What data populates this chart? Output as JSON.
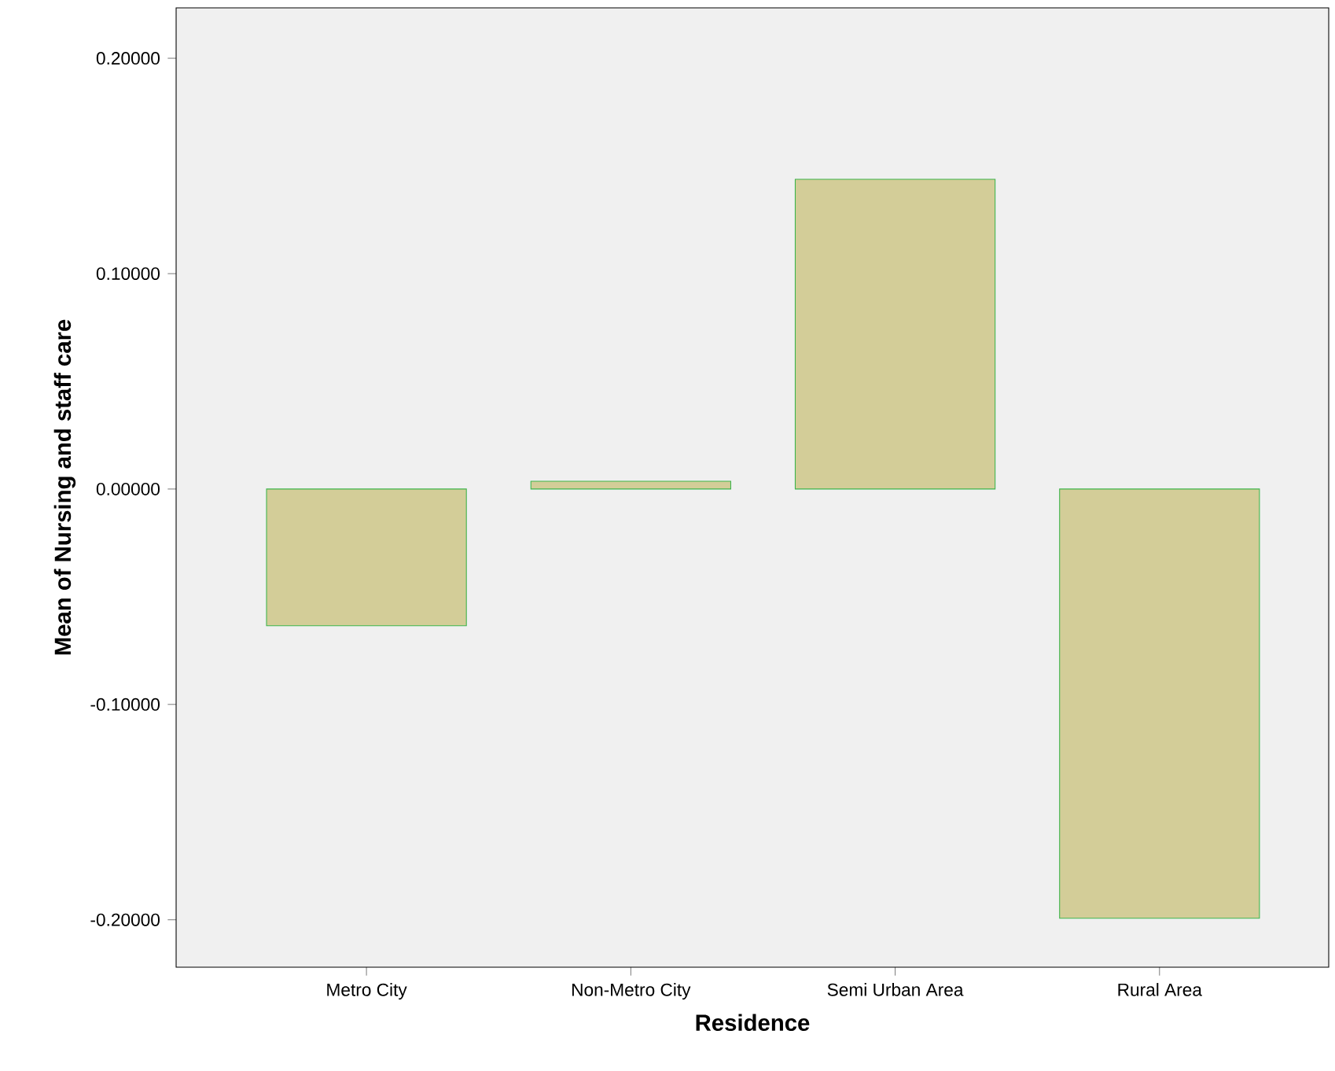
{
  "chart_data": {
    "type": "bar",
    "xlabel": "Residence",
    "ylabel": "Mean of Nursing and staff care",
    "categories": [
      "Metro City",
      "Non-Metro City",
      "Semi Urban Area",
      "Rural Area"
    ],
    "values": [
      -0.0635,
      0.0036,
      0.1438,
      -0.1993
    ],
    "color": "#d3cd98",
    "ylim": [
      -0.222,
      0.2234
    ],
    "yticks": [
      {
        "value": -0.2,
        "label": "-0.20000"
      },
      {
        "value": -0.1,
        "label": "-0.10000"
      },
      {
        "value": 0,
        "label": "0.00000"
      },
      {
        "value": 0.1,
        "label": "0.10000"
      },
      {
        "value": 0.2,
        "label": "0.20000"
      }
    ],
    "grid": false
  }
}
